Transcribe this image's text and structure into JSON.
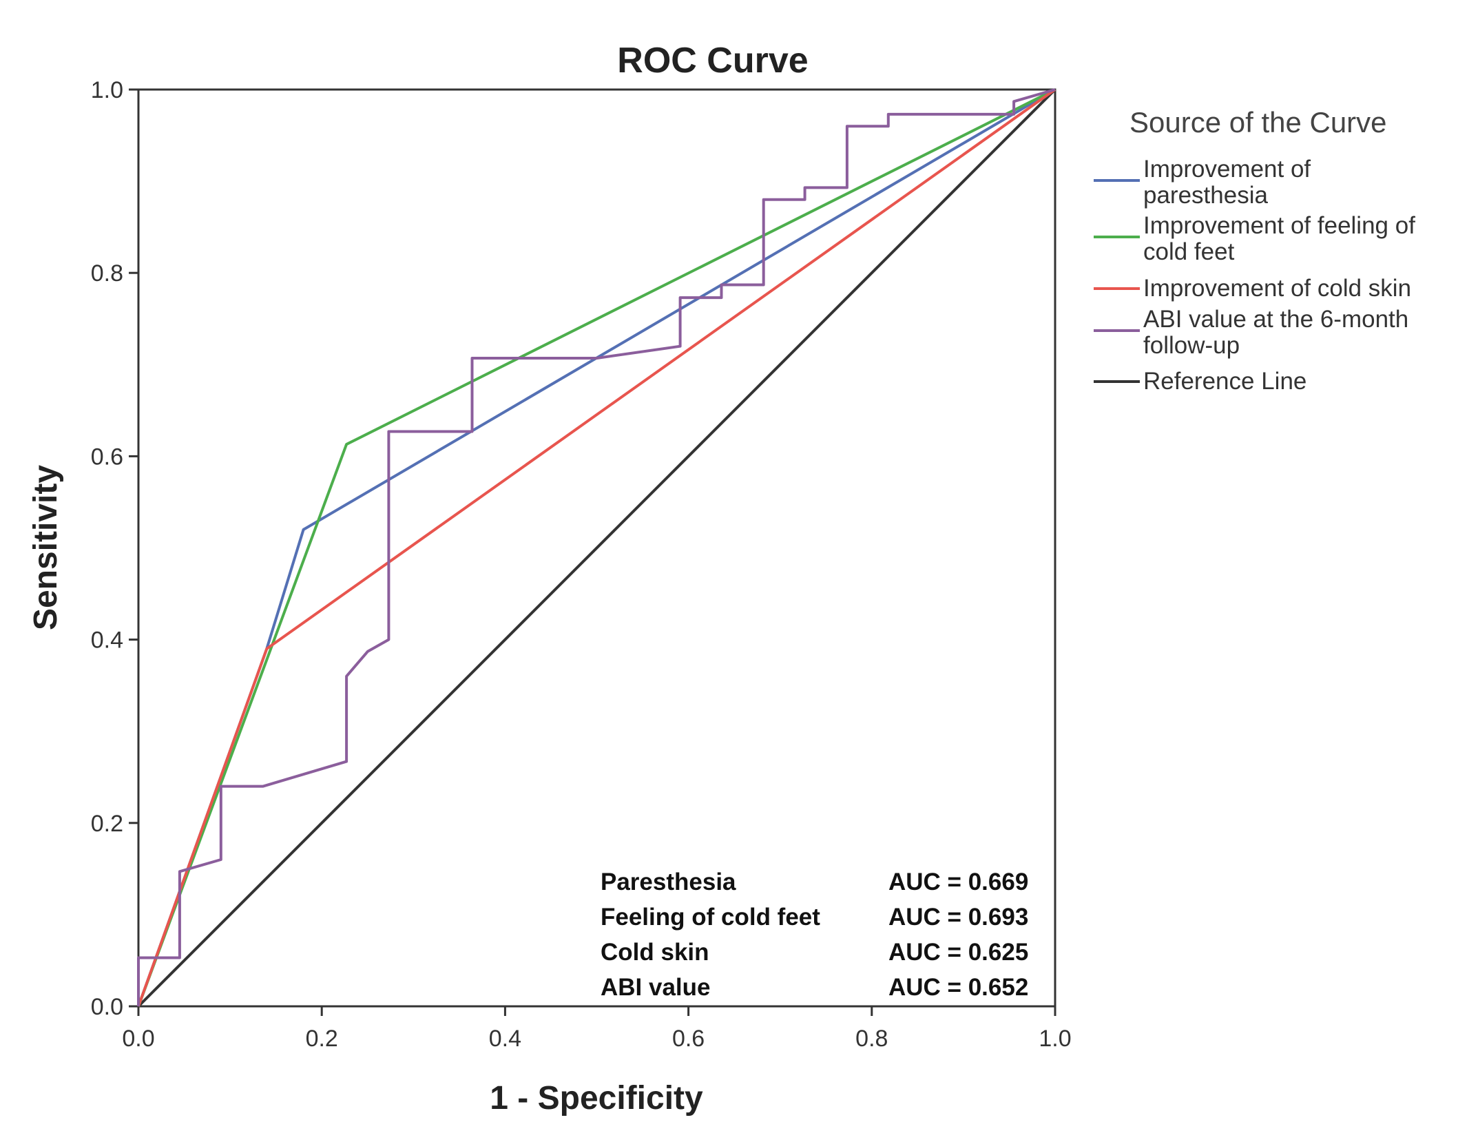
{
  "chart_data": {
    "type": "line",
    "title": "ROC Curve",
    "xlabel": "1 - Specificity",
    "ylabel": "Sensitivity",
    "xlim": [
      0,
      1
    ],
    "ylim": [
      0,
      1
    ],
    "xticks": [
      "0.0",
      "0.2",
      "0.4",
      "0.6",
      "0.8",
      "1.0"
    ],
    "yticks": [
      "0.0",
      "0.2",
      "0.4",
      "0.6",
      "0.8",
      "1.0"
    ],
    "grid": false,
    "legend": {
      "title": "Source of the Curve",
      "position": "right",
      "entries": [
        {
          "lines": [
            "Improvement of",
            "paresthesia"
          ],
          "color": "#5470b4"
        },
        {
          "lines": [
            "Improvement of feeling of",
            "cold feet"
          ],
          "color": "#4cae4c"
        },
        {
          "lines": [
            "Improvement of cold skin"
          ],
          "color": "#e8554e"
        },
        {
          "lines": [
            "ABI value at the 6-month",
            "follow-up"
          ],
          "color": "#8b5e9c"
        },
        {
          "lines": [
            "Reference Line"
          ],
          "color": "#333333"
        }
      ]
    },
    "series": [
      {
        "name": "Improvement of paresthesia",
        "color": "#5470b4",
        "x": [
          0,
          0.14,
          0.18,
          1
        ],
        "y": [
          0,
          0.39,
          0.52,
          1
        ]
      },
      {
        "name": "Improvement of feeling of cold feet",
        "color": "#4cae4c",
        "x": [
          0,
          0.227,
          1
        ],
        "y": [
          0,
          0.613,
          1
        ]
      },
      {
        "name": "Improvement of cold skin",
        "color": "#e8554e",
        "x": [
          0,
          0.14,
          1
        ],
        "y": [
          0,
          0.39,
          1
        ]
      },
      {
        "name": "ABI value at the 6-month follow-up",
        "color": "#8b5e9c",
        "x": [
          0,
          0,
          0.045,
          0.045,
          0.09,
          0.09,
          0.136,
          0.227,
          0.227,
          0.25,
          0.273,
          0.273,
          0.364,
          0.364,
          0.409,
          0.5,
          0.591,
          0.591,
          0.636,
          0.636,
          0.682,
          0.682,
          0.727,
          0.727,
          0.773,
          0.773,
          0.818,
          0.818,
          0.955,
          0.955,
          1
        ],
        "y": [
          0,
          0.053,
          0.053,
          0.147,
          0.16,
          0.24,
          0.24,
          0.267,
          0.36,
          0.387,
          0.4,
          0.627,
          0.627,
          0.707,
          0.707,
          0.707,
          0.72,
          0.773,
          0.773,
          0.787,
          0.787,
          0.88,
          0.88,
          0.893,
          0.893,
          0.96,
          0.96,
          0.973,
          0.973,
          0.987,
          1
        ]
      },
      {
        "name": "Reference Line",
        "color": "#333333",
        "x": [
          0,
          1
        ],
        "y": [
          0,
          1
        ]
      }
    ],
    "annotations": [
      {
        "label": "Paresthesia",
        "value": "AUC = 0.669"
      },
      {
        "label": "Feeling of cold feet",
        "value": "AUC = 0.693"
      },
      {
        "label": "Cold skin",
        "value": "AUC = 0.625"
      },
      {
        "label": "ABI value",
        "value": "AUC = 0.652"
      }
    ]
  }
}
